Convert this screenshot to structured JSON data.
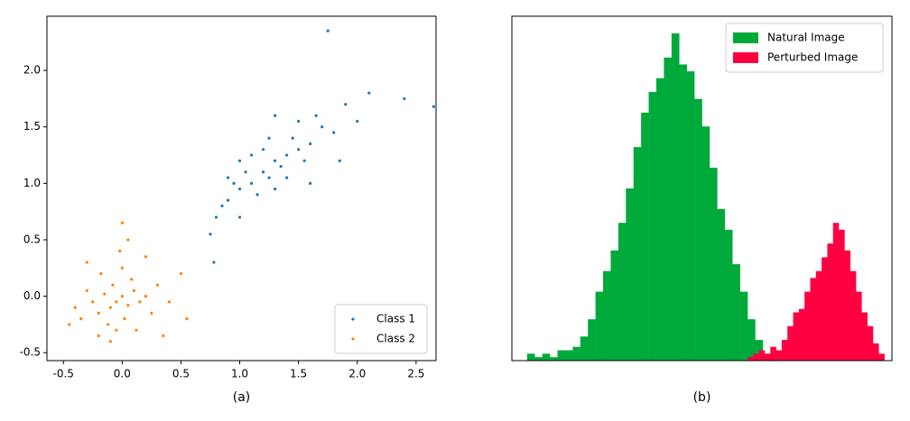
{
  "chart_data": [
    {
      "type": "scatter",
      "caption": "(a)",
      "xlim": [
        -0.64,
        2.67
      ],
      "ylim": [
        -0.57,
        2.48
      ],
      "xticks": [
        {
          "value": -0.5,
          "label": "-0.5"
        },
        {
          "value": 0,
          "label": "0.0"
        },
        0.5,
        {
          "value": 1,
          "label": "1.0"
        },
        1.5,
        {
          "value": 2,
          "label": "2.0"
        },
        2.5
      ],
      "yticks": [
        {
          "value": -0.5,
          "label": "-0.5"
        },
        {
          "value": 0,
          "label": "0.0"
        },
        0.5,
        {
          "value": 1,
          "label": "1.0"
        },
        1.5,
        {
          "value": 2,
          "label": "2.0"
        }
      ],
      "legend": "lower right",
      "series": [
        {
          "name": "Class 1",
          "color": "#1f77b4",
          "x": [
            1.2,
            1.0,
            1.3,
            1.1,
            0.9,
            1.4,
            1.5,
            1.25,
            1.05,
            1.35,
            0.95,
            1.15,
            1.45,
            1.6,
            0.85,
            1.7,
            1.0,
            1.3,
            1.2,
            1.55,
            0.8,
            1.1,
            1.4,
            1.65,
            1.8,
            0.9,
            1.25,
            1.5,
            1.9,
            2.1,
            1.75,
            2.4,
            2.65,
            0.75,
            0.78,
            1.85,
            2.0,
            1.3,
            1.0,
            1.6
          ],
          "values": [
            1.1,
            0.95,
            1.2,
            1.0,
            0.85,
            1.25,
            1.3,
            1.05,
            1.1,
            1.15,
            1.0,
            0.9,
            1.4,
            1.35,
            0.8,
            1.5,
            1.2,
            0.95,
            1.3,
            1.2,
            0.7,
            1.25,
            1.05,
            1.6,
            1.45,
            1.05,
            1.4,
            1.55,
            1.7,
            1.8,
            2.35,
            1.75,
            1.68,
            0.55,
            0.3,
            1.2,
            1.55,
            1.6,
            0.7,
            1.0
          ]
        },
        {
          "name": "Class 2",
          "color": "#ff7f0e",
          "x": [
            -0.05,
            0.0,
            -0.1,
            0.05,
            -0.15,
            0.1,
            -0.2,
            0.02,
            -0.08,
            0.15,
            -0.25,
            0.08,
            -0.12,
            0.2,
            -0.3,
            0.0,
            -0.05,
            0.25,
            -0.35,
            0.3,
            -0.18,
            0.12,
            -0.4,
            0.4,
            -0.02,
            0.0,
            -0.45,
            0.5,
            0.55,
            -0.3,
            0.2,
            -0.1,
            0.35,
            -0.2,
            0.05
          ],
          "values": [
            -0.05,
            0.0,
            -0.1,
            -0.08,
            0.02,
            0.05,
            -0.15,
            -0.2,
            0.1,
            -0.05,
            -0.05,
            0.15,
            -0.25,
            0.0,
            0.05,
            0.25,
            -0.3,
            -0.15,
            -0.2,
            0.1,
            0.2,
            -0.3,
            -0.1,
            -0.05,
            0.4,
            0.65,
            -0.25,
            0.2,
            -0.2,
            0.3,
            0.35,
            -0.4,
            -0.35,
            -0.35,
            0.5
          ]
        }
      ]
    },
    {
      "type": "histogram",
      "caption": "(b)",
      "xlim": [
        0,
        100
      ],
      "ylim": [
        0,
        100
      ],
      "legend": "upper right",
      "series": [
        {
          "name": "Natural Image",
          "color": "#00aa3a",
          "bins": [
            4,
            6,
            8,
            10,
            12,
            14,
            16,
            18,
            20,
            22,
            24,
            26,
            28,
            30,
            32,
            34,
            36,
            38,
            40,
            42,
            44,
            46,
            48,
            50,
            52,
            54,
            56,
            58,
            60,
            62,
            64,
            66,
            68
          ],
          "values": [
            2,
            1,
            2,
            1,
            3,
            3,
            4,
            7,
            12,
            20,
            26,
            32,
            40,
            50,
            62,
            72,
            78,
            82,
            88,
            95,
            86,
            84,
            76,
            68,
            56,
            44,
            38,
            28,
            20,
            12,
            6,
            2
          ]
        },
        {
          "name": "Perturbed Image",
          "color": "#ff0040",
          "bins": [
            62,
            63.5,
            65,
            66.5,
            68,
            69.5,
            71,
            72.5,
            74,
            75.5,
            77,
            78.5,
            80,
            81.5,
            83,
            84.5,
            86,
            87.5,
            89,
            90.5,
            92,
            93.5,
            95,
            96.5,
            98
          ],
          "values": [
            1,
            2,
            3,
            2,
            4,
            3,
            6,
            10,
            14,
            15,
            20,
            24,
            26,
            30,
            34,
            40,
            38,
            32,
            26,
            20,
            14,
            10,
            5,
            2
          ]
        }
      ]
    }
  ]
}
